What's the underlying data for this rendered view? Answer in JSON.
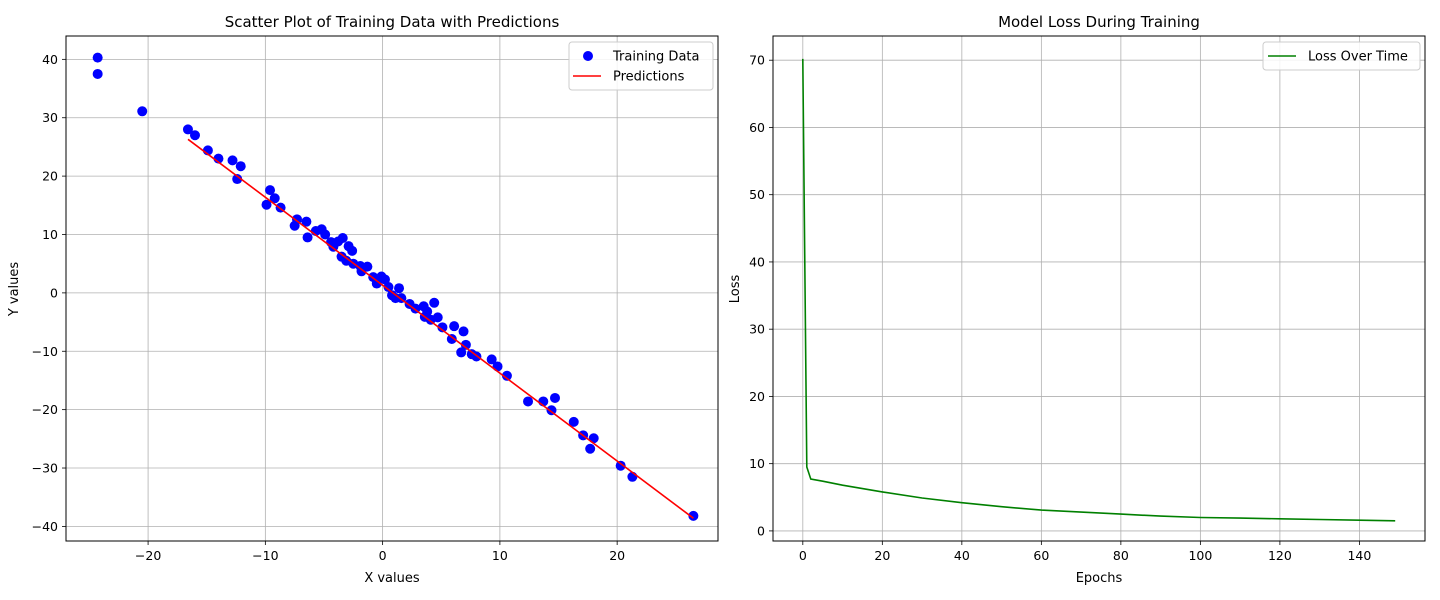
{
  "chart_data": [
    {
      "type": "scatter",
      "title": "Scatter Plot of Training Data with Predictions",
      "xlabel": "X values",
      "ylabel": "Y values",
      "xlim": [
        -27.0,
        28.6
      ],
      "ylim": [
        -42.5,
        44.0
      ],
      "xticks": [
        -20,
        -10,
        0,
        10,
        20
      ],
      "yticks": [
        -40,
        -30,
        -20,
        -10,
        0,
        10,
        20,
        30,
        40
      ],
      "grid": true,
      "legend": "top-right",
      "series": [
        {
          "name": "Training Data",
          "kind": "scatter",
          "color": "#0000ff",
          "points": [
            [
              -24.3,
              40.3
            ],
            [
              -24.3,
              37.5
            ],
            [
              -20.5,
              31.1
            ],
            [
              -16.6,
              28.0
            ],
            [
              -16.0,
              27.0
            ],
            [
              -14.9,
              24.4
            ],
            [
              -14.0,
              23.0
            ],
            [
              -12.8,
              22.7
            ],
            [
              -12.1,
              21.7
            ],
            [
              -12.4,
              19.5
            ],
            [
              -9.6,
              17.6
            ],
            [
              -9.2,
              16.2
            ],
            [
              -8.7,
              14.6
            ],
            [
              -9.9,
              15.1
            ],
            [
              -7.3,
              12.6
            ],
            [
              -6.5,
              12.2
            ],
            [
              -7.5,
              11.5
            ],
            [
              -6.4,
              9.5
            ],
            [
              -5.7,
              10.6
            ],
            [
              -5.2,
              10.9
            ],
            [
              -4.9,
              10.0
            ],
            [
              -4.4,
              8.7
            ],
            [
              -3.8,
              8.8
            ],
            [
              -4.2,
              7.9
            ],
            [
              -3.4,
              9.4
            ],
            [
              -2.9,
              8.0
            ],
            [
              -2.6,
              7.2
            ],
            [
              -3.5,
              6.2
            ],
            [
              -3.1,
              5.5
            ],
            [
              -2.5,
              5.0
            ],
            [
              -1.9,
              4.6
            ],
            [
              -1.8,
              3.7
            ],
            [
              -1.3,
              4.5
            ],
            [
              -0.8,
              2.7
            ],
            [
              -0.5,
              1.6
            ],
            [
              -0.1,
              2.8
            ],
            [
              0.2,
              2.3
            ],
            [
              0.5,
              1.0
            ],
            [
              0.8,
              -0.4
            ],
            [
              1.1,
              -0.9
            ],
            [
              1.4,
              0.8
            ],
            [
              1.6,
              -0.9
            ],
            [
              2.3,
              -1.9
            ],
            [
              2.8,
              -2.7
            ],
            [
              3.5,
              -2.3
            ],
            [
              3.8,
              -3.2
            ],
            [
              3.6,
              -4.1
            ],
            [
              4.1,
              -4.6
            ],
            [
              4.4,
              -1.7
            ],
            [
              4.7,
              -4.2
            ],
            [
              5.1,
              -5.9
            ],
            [
              5.9,
              -7.9
            ],
            [
              6.1,
              -5.7
            ],
            [
              6.7,
              -10.2
            ],
            [
              6.9,
              -6.6
            ],
            [
              7.1,
              -8.9
            ],
            [
              7.6,
              -10.5
            ],
            [
              8.0,
              -10.9
            ],
            [
              9.3,
              -11.4
            ],
            [
              9.8,
              -12.6
            ],
            [
              10.6,
              -14.2
            ],
            [
              12.4,
              -18.6
            ],
            [
              13.7,
              -18.6
            ],
            [
              14.4,
              -20.1
            ],
            [
              14.7,
              -18.0
            ],
            [
              16.3,
              -22.1
            ],
            [
              17.1,
              -24.4
            ],
            [
              17.7,
              -26.7
            ],
            [
              18.0,
              -24.9
            ],
            [
              20.3,
              -29.6
            ],
            [
              21.3,
              -31.5
            ],
            [
              26.5,
              -38.2
            ]
          ]
        },
        {
          "name": "Predictions",
          "kind": "line",
          "color": "#ff0000",
          "x": [
            -16.6,
            26.5
          ],
          "y": [
            26.3,
            -38.6
          ]
        }
      ]
    },
    {
      "type": "line",
      "title": "Model Loss During Training",
      "xlabel": "Epochs",
      "ylabel": "Loss",
      "xlim": [
        -7.5,
        156.5
      ],
      "ylim": [
        -1.5,
        73.6
      ],
      "xticks": [
        0,
        20,
        40,
        60,
        80,
        100,
        120,
        140
      ],
      "yticks": [
        0,
        10,
        20,
        30,
        40,
        50,
        60,
        70
      ],
      "grid": true,
      "legend": "top-right",
      "series": [
        {
          "name": "Loss Over Time",
          "kind": "line",
          "color": "#008000",
          "x": [
            0,
            1,
            2,
            5,
            10,
            20,
            30,
            40,
            50,
            60,
            70,
            80,
            90,
            100,
            110,
            120,
            130,
            140,
            149
          ],
          "y": [
            70.2,
            9.5,
            7.7,
            7.4,
            6.8,
            5.8,
            4.9,
            4.2,
            3.6,
            3.1,
            2.8,
            2.5,
            2.2,
            2.0,
            1.9,
            1.8,
            1.7,
            1.6,
            1.5
          ]
        }
      ]
    }
  ]
}
